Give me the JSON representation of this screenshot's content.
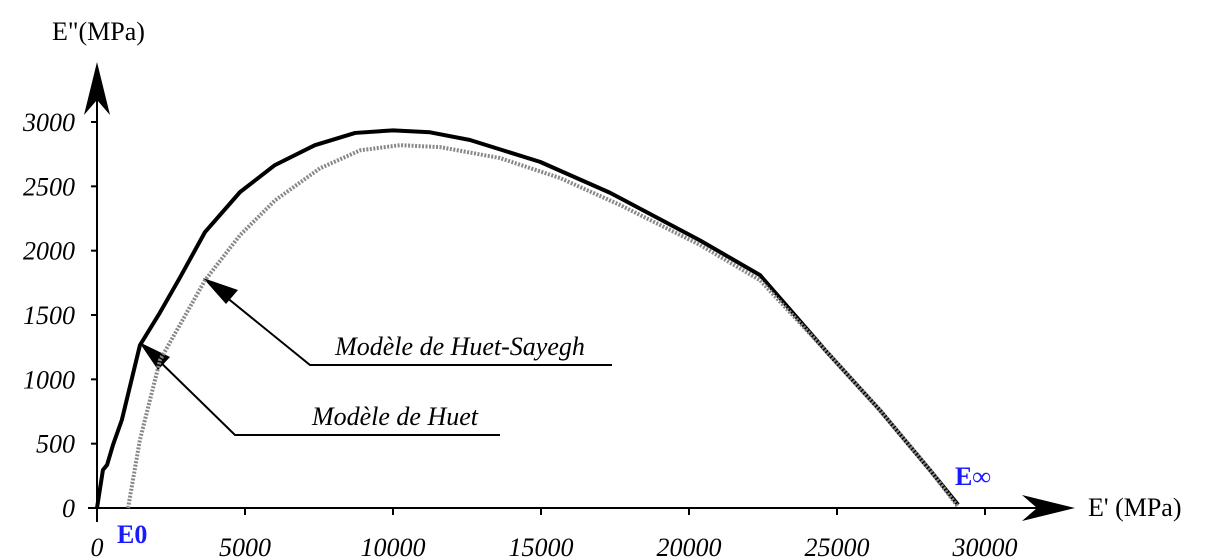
{
  "chart_data": {
    "type": "line",
    "y_label": "E\"(MPa)",
    "x_label": "E'  (MPa)",
    "annotations": [
      "E0",
      "E∞"
    ],
    "xlim": [
      0,
      30000
    ],
    "xticks": [
      0,
      5000,
      10000,
      15000,
      20000,
      25000,
      30000
    ],
    "ylim": [
      0,
      3000
    ],
    "yticks": [
      0,
      500,
      1000,
      1500,
      2000,
      2500,
      3000
    ],
    "series": [
      {
        "name": "Modèle de Huet",
        "color": "#000000",
        "style": "solid",
        "x": [
          0,
          200,
          340,
          540,
          840,
          1450,
          2130,
          2800,
          3650,
          4830,
          6010,
          7360,
          8720,
          10000,
          11250,
          12600,
          14970,
          17330,
          20370,
          22400,
          24590,
          26450,
          28140,
          29090
        ],
        "values": [
          0,
          295,
          335,
          490,
          685,
          1265,
          1520,
          1790,
          2145,
          2455,
          2665,
          2820,
          2915,
          2935,
          2920,
          2860,
          2690,
          2450,
          2080,
          1810,
          1230,
          760,
          295,
          25
        ]
      },
      {
        "name": "Modèle de Huet-Sayegh",
        "color": "#888888",
        "style": "dotted",
        "x": [
          1050,
          1450,
          2130,
          3650,
          4830,
          6010,
          7530,
          8890,
          10240,
          11590,
          13610,
          15640,
          17670,
          20370,
          22400,
          24590,
          26450,
          28140,
          29090
        ],
        "values": [
          0,
          530,
          1150,
          1770,
          2120,
          2390,
          2640,
          2780,
          2820,
          2805,
          2720,
          2565,
          2355,
          2045,
          1770,
          1230,
          760,
          295,
          10
        ]
      }
    ]
  }
}
